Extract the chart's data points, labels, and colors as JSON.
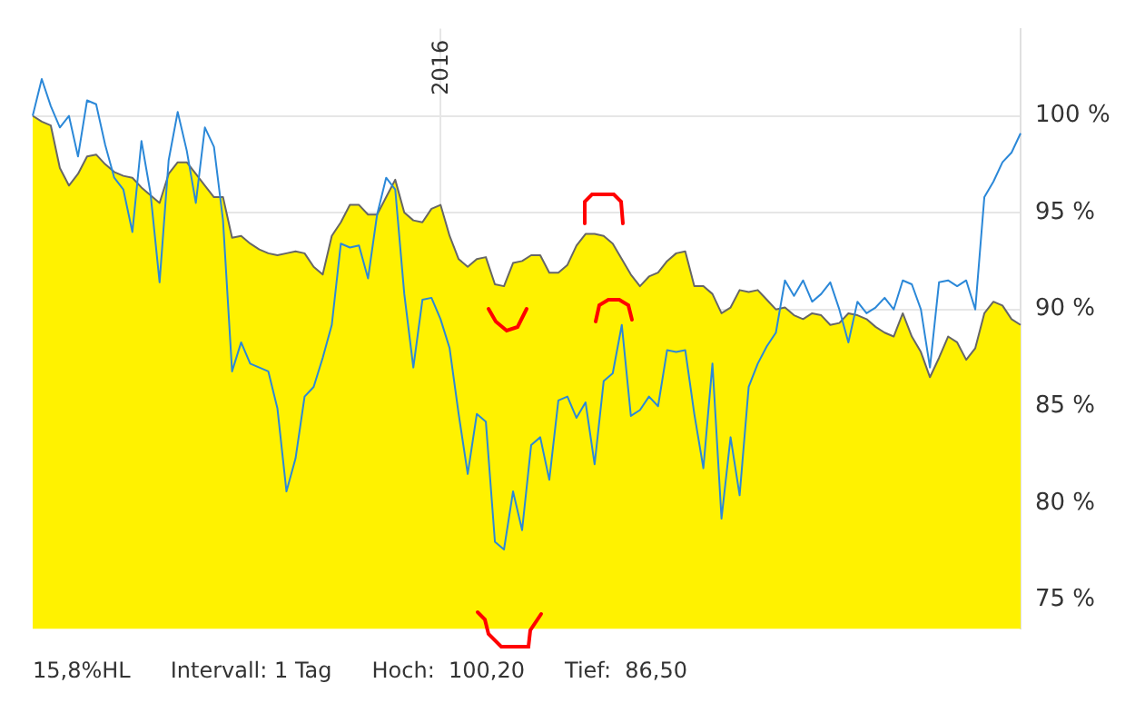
{
  "chart_data": {
    "type": "line",
    "marker": "none",
    "grid": true,
    "categories": [
      null,
      null,
      null,
      null,
      null,
      null,
      null,
      null,
      null,
      null,
      null,
      null,
      null,
      null,
      null,
      null,
      null,
      null,
      null,
      null,
      null,
      null,
      null,
      null,
      null,
      null,
      null,
      null,
      null,
      null,
      null,
      null,
      null,
      null,
      null,
      null,
      null,
      null,
      null,
      null,
      null,
      null,
      null,
      null,
      null,
      "2016",
      null,
      null,
      null,
      null,
      null,
      null,
      null,
      null,
      null,
      null,
      null,
      null,
      null,
      null,
      null,
      null,
      null,
      null,
      null,
      null,
      null,
      null,
      null,
      null,
      null,
      null,
      null,
      null,
      null,
      null,
      null,
      null,
      null,
      null,
      null,
      null,
      null,
      null,
      null,
      null,
      null,
      null,
      null,
      null,
      null,
      null,
      null,
      null,
      null,
      null,
      null,
      null,
      null,
      null,
      null,
      null,
      null,
      null,
      null,
      null,
      null,
      null,
      null,
      null
    ],
    "ylim": [
      73.5,
      104.5
    ],
    "yticks": [
      {
        "value": 75,
        "label": "75 %"
      },
      {
        "value": 80,
        "label": "80 %"
      },
      {
        "value": 85,
        "label": "85 %"
      },
      {
        "value": 90,
        "label": "90 %"
      },
      {
        "value": 95,
        "label": "95 %"
      },
      {
        "value": 100,
        "label": "100 %"
      }
    ],
    "series": [
      {
        "type": "area",
        "color": "#fff200",
        "values": [
          100.0,
          99.7,
          99.5,
          97.3,
          96.4,
          97.0,
          97.9,
          98.0,
          97.5,
          97.1,
          96.9,
          96.8,
          96.3,
          95.9,
          95.5,
          97.0,
          97.6,
          97.6,
          97.0,
          96.4,
          95.8,
          95.8,
          93.7,
          93.8,
          93.4,
          93.1,
          92.9,
          92.8,
          92.9,
          93.0,
          92.9,
          92.2,
          91.8,
          93.8,
          94.5,
          95.4,
          95.4,
          94.9,
          94.9,
          95.8,
          96.7,
          95.0,
          94.6,
          94.5,
          95.2,
          95.4,
          93.8,
          92.6,
          92.2,
          92.6,
          92.7,
          91.3,
          91.2,
          92.4,
          92.5,
          92.8,
          92.8,
          91.9,
          91.9,
          92.3,
          93.3,
          93.9,
          93.9,
          93.8,
          93.4,
          92.6,
          91.8,
          91.2,
          91.7,
          91.9,
          92.5,
          92.9,
          93.0,
          91.2,
          91.2,
          90.8,
          89.8,
          90.1,
          91.0,
          90.9,
          91.0,
          90.5,
          90.0,
          90.1,
          89.7,
          89.5,
          89.8,
          89.7,
          89.2,
          89.3,
          89.8,
          89.7,
          89.5,
          89.1,
          88.8,
          88.6,
          89.8,
          88.6,
          87.8,
          86.5,
          87.5,
          88.6,
          88.3,
          87.4,
          88.0,
          89.8,
          90.4,
          90.2,
          89.5,
          89.2
        ]
      },
      {
        "type": "line",
        "color": "#2b88d8",
        "values": [
          100.0,
          101.9,
          100.5,
          99.4,
          100.0,
          97.9,
          100.8,
          100.6,
          98.5,
          96.8,
          96.2,
          94.0,
          98.7,
          96.0,
          91.4,
          97.7,
          100.2,
          98.2,
          95.5,
          99.4,
          98.4,
          94.6,
          86.8,
          88.3,
          87.2,
          87.0,
          86.8,
          84.9,
          80.6,
          82.3,
          85.5,
          86.0,
          87.5,
          89.2,
          93.4,
          93.2,
          93.3,
          91.6,
          94.9,
          96.8,
          96.2,
          90.8,
          87.0,
          90.5,
          90.6,
          89.5,
          88.0,
          84.6,
          81.5,
          84.6,
          84.2,
          78.0,
          77.6,
          80.6,
          78.6,
          83.0,
          83.4,
          81.2,
          85.3,
          85.5,
          84.4,
          85.2,
          82.0,
          86.3,
          86.7,
          89.2,
          84.5,
          84.8,
          85.5,
          85.0,
          87.9,
          87.8,
          87.9,
          84.6,
          81.8,
          87.2,
          79.2,
          83.4,
          80.4,
          86.0,
          87.2,
          88.1,
          88.8,
          91.5,
          90.7,
          91.5,
          90.4,
          90.8,
          91.4,
          90.0,
          88.3,
          90.4,
          89.8,
          90.1,
          90.6,
          90.0,
          91.5,
          91.3,
          90.0,
          87.0,
          91.4,
          91.5,
          91.2,
          91.5,
          90.0,
          95.8,
          96.6,
          97.6,
          98.1,
          99.1
        ]
      }
    ],
    "annotations": [
      "15,8%HL",
      "Intervall: 1 Tag",
      "Hoch:  100,20",
      "Tief:  86,50"
    ]
  }
}
